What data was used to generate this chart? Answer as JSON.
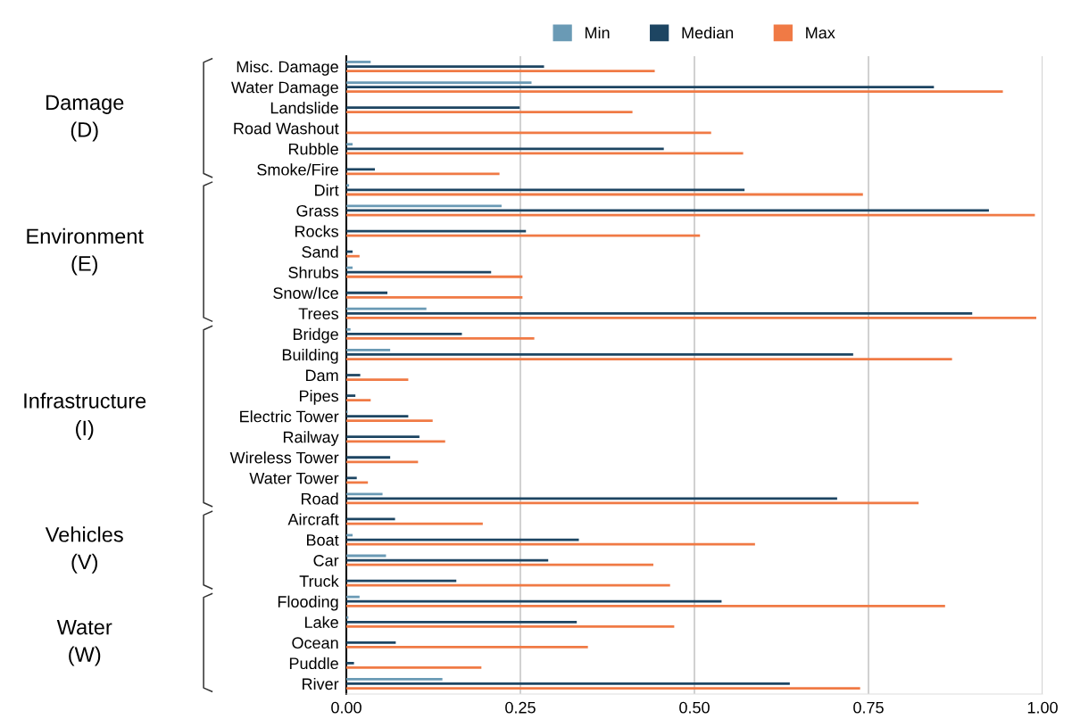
{
  "chart_data": {
    "type": "bar",
    "orientation": "horizontal",
    "categories": [
      "Misc. Damage",
      "Water Damage",
      "Landslide",
      "Road Washout",
      "Rubble",
      "Smoke/Fire",
      "Dirt",
      "Grass",
      "Rocks",
      "Sand",
      "Shrubs",
      "Snow/Ice",
      "Trees",
      "Bridge",
      "Building",
      "Dam",
      "Pipes",
      "Electric Tower",
      "Railway",
      "Wireless Tower",
      "Water Tower",
      "Road",
      "Aircraft",
      "Boat",
      "Car",
      "Truck",
      "Flooding",
      "Lake",
      "Ocean",
      "Puddle",
      "River"
    ],
    "series": [
      {
        "name": "Min",
        "color": "#6a9ab5",
        "values": [
          0.035,
          0.266,
          0,
          0,
          0.009,
          0,
          0.004,
          0.223,
          0,
          0,
          0.009,
          0,
          0.115,
          0.006,
          0.063,
          0,
          0,
          0.002,
          0,
          0,
          0,
          0.052,
          0,
          0.009,
          0.057,
          0,
          0.019,
          0.003,
          0,
          0,
          0.138
        ]
      },
      {
        "name": "Median",
        "color": "#1d4562",
        "values": [
          0.284,
          0.844,
          0.249,
          0,
          0.456,
          0.041,
          0.572,
          0.923,
          0.258,
          0.009,
          0.208,
          0.059,
          0.899,
          0.166,
          0.728,
          0.02,
          0.013,
          0.089,
          0.105,
          0.063,
          0.015,
          0.705,
          0.07,
          0.334,
          0.29,
          0.158,
          0.539,
          0.331,
          0.071,
          0.011,
          0.637
        ]
      },
      {
        "name": "Max",
        "color": "#f07a45",
        "values": [
          0.443,
          0.943,
          0.411,
          0.524,
          0.57,
          0.22,
          0.742,
          0.989,
          0.508,
          0.019,
          0.253,
          0.253,
          0.991,
          0.27,
          0.87,
          0.089,
          0.035,
          0.124,
          0.142,
          0.103,
          0.031,
          0.822,
          0.196,
          0.587,
          0.441,
          0.465,
          0.86,
          0.471,
          0.347,
          0.194,
          0.738
        ]
      }
    ],
    "xlim": [
      0,
      1
    ],
    "xticks": [
      {
        "value": 0,
        "label": "0.00"
      },
      {
        "value": 0.25,
        "label": "0.25"
      },
      {
        "value": 0.5,
        "label": "0.50"
      },
      {
        "value": 0.75,
        "label": "0.75"
      },
      {
        "value": 1,
        "label": "1.00"
      }
    ],
    "grid": "x",
    "legend": "top",
    "annotations": [
      "Damage\n(D)",
      "Environment\n(E)",
      "Infrastructure\n(I)",
      "Vehicles\n(V)",
      "Water\n(W)"
    ]
  }
}
